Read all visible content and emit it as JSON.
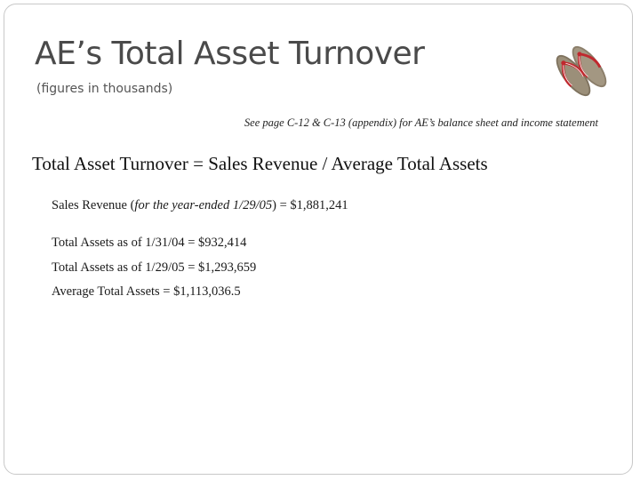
{
  "slide": {
    "title": "AE’s Total Asset Turnover",
    "subtitle": "(figures in thousands)",
    "image_icon": "flip-flops",
    "reference_note": "See page C-12 & C-13 (appendix) for AE’s balance sheet and income statement",
    "formula": "Total Asset Turnover = Sales Revenue / Average Total Assets",
    "sales_revenue": {
      "label": "Sales Revenue (",
      "period": "for the year-ended 1/29/05",
      "value": ") = $1,881,241"
    },
    "assets": [
      "Total Assets as of 1/31/04 = $932,414",
      "Total Assets as of 1/29/05 = $1,293,659",
      "Average Total Assets = $1,113,036.5"
    ]
  },
  "colors": {
    "title": "#4a4a4a",
    "border": "#c8c8c8",
    "strap_red": "#c0282e",
    "sole": "#8b7e6a"
  }
}
